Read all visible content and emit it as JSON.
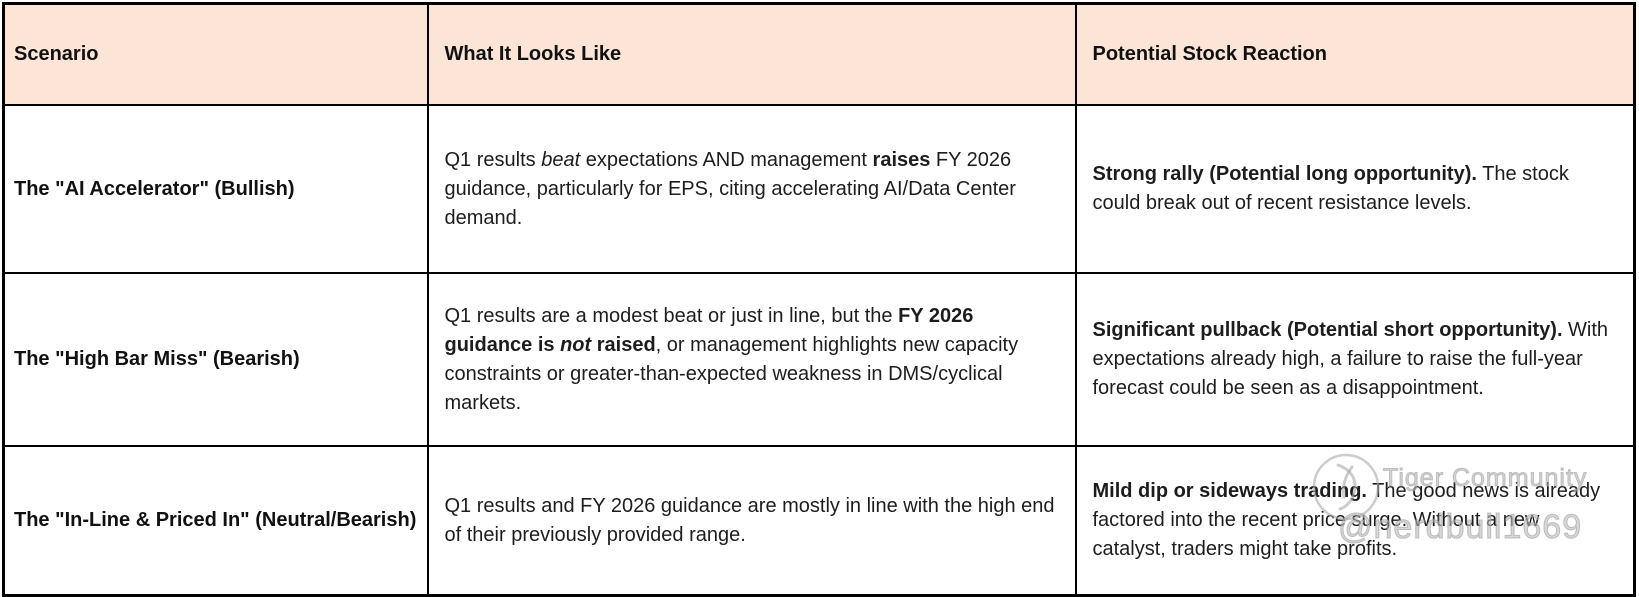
{
  "colors": {
    "header_bg": "#fce4d6",
    "border": "#000000",
    "text": "#1d1d1d",
    "watermark": "#b7b7b7"
  },
  "table": {
    "headers": {
      "scenario": "Scenario",
      "looks_like": "What It Looks Like",
      "reaction": "Potential Stock Reaction"
    },
    "rows": [
      {
        "scenario": "The \"AI Accelerator\" (Bullish)",
        "looks_like": [
          {
            "t": "Q1 results ",
            "s": ""
          },
          {
            "t": "beat",
            "s": "i"
          },
          {
            "t": "  expectations AND management ",
            "s": ""
          },
          {
            "t": "raises",
            "s": "b"
          },
          {
            "t": " FY 2026 guidance, particularly for EPS, citing accelerating AI/Data Center demand.",
            "s": ""
          }
        ],
        "reaction": [
          {
            "t": "Strong rally (Potential long opportunity).",
            "s": "b"
          },
          {
            "t": " The stock could break out of recent resistance levels.",
            "s": ""
          }
        ]
      },
      {
        "scenario": "The \"High Bar Miss\" (Bearish)",
        "looks_like": [
          {
            "t": "Q1 results are a modest beat or just in line, but the ",
            "s": ""
          },
          {
            "t": "FY 2026 guidance is ",
            "s": "b"
          },
          {
            "t": "not",
            "s": "bi"
          },
          {
            "t": " raised",
            "s": "b"
          },
          {
            "t": ", or management highlights new capacity constraints or greater-than-expected weakness in DMS/cyclical markets.",
            "s": ""
          }
        ],
        "reaction": [
          {
            "t": "Significant pullback (Potential short opportunity).",
            "s": "b"
          },
          {
            "t": " With expectations already high, a failure to raise the full-year forecast could be seen as a disappointment.",
            "s": ""
          }
        ]
      },
      {
        "scenario": "The \"In-Line & Priced In\" (Neutral/Bearish)",
        "looks_like": [
          {
            "t": "Q1 results and FY 2026 guidance are mostly in line with the high end of their previously provided range.",
            "s": ""
          }
        ],
        "reaction": [
          {
            "t": "Mild dip or sideways trading.",
            "s": "b"
          },
          {
            "t": " The good news is already factored into the recent price surge. Without a new catalyst, traders might take profits.",
            "s": ""
          }
        ]
      }
    ]
  },
  "watermark": {
    "community": "Tiger Community",
    "handle": "@nerdbull1669"
  }
}
